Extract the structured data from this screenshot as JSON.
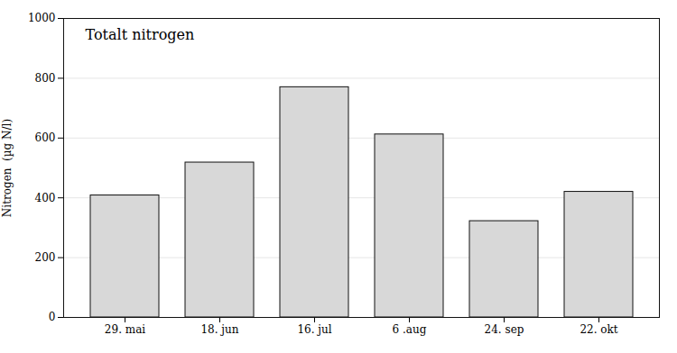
{
  "chart_data": {
    "type": "bar",
    "title": "Totalt nitrogen",
    "ylabel": "Nitrogen  (µg N/l)",
    "categories": [
      "29. mai",
      "18. jun",
      "16. jul",
      "6 .aug",
      "24. sep",
      "22. okt"
    ],
    "values": [
      408,
      518,
      770,
      612,
      322,
      420
    ],
    "color": "#d8d8d8",
    "ylim": [
      0,
      1000
    ],
    "yticks": [
      0,
      200,
      400,
      600,
      800,
      1000
    ],
    "grid": true
  }
}
